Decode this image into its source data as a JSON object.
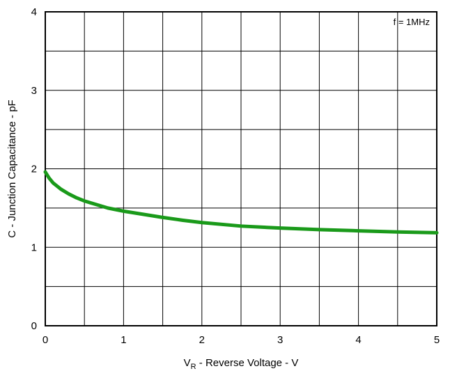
{
  "chart_data": {
    "type": "line",
    "title": "",
    "xlabel_main": "V",
    "xlabel_sub": "R",
    "xlabel_rest": " - Reverse Voltage - V",
    "ylabel": "C - Junction Capacitance - pF",
    "annotation": "f = 1MHz",
    "xlim": [
      0,
      5
    ],
    "ylim": [
      0,
      4
    ],
    "x_ticks": [
      "0",
      "1",
      "2",
      "3",
      "4",
      "5"
    ],
    "y_ticks": [
      "0",
      "1",
      "2",
      "3",
      "4"
    ],
    "x_grid_step": 0.5,
    "y_grid_step": 0.5,
    "grid": true,
    "line_color": "#1a9a1a",
    "series": [
      {
        "x": [
          0,
          0.05,
          0.1,
          0.2,
          0.3,
          0.4,
          0.5,
          0.6,
          0.8,
          1.0,
          1.25,
          1.5,
          1.75,
          2.0,
          2.5,
          3.0,
          3.5,
          4.0,
          4.5,
          5.0
        ],
        "values": [
          1.96,
          1.88,
          1.82,
          1.74,
          1.68,
          1.63,
          1.59,
          1.56,
          1.5,
          1.46,
          1.42,
          1.38,
          1.345,
          1.315,
          1.27,
          1.245,
          1.225,
          1.21,
          1.195,
          1.185
        ]
      }
    ]
  }
}
